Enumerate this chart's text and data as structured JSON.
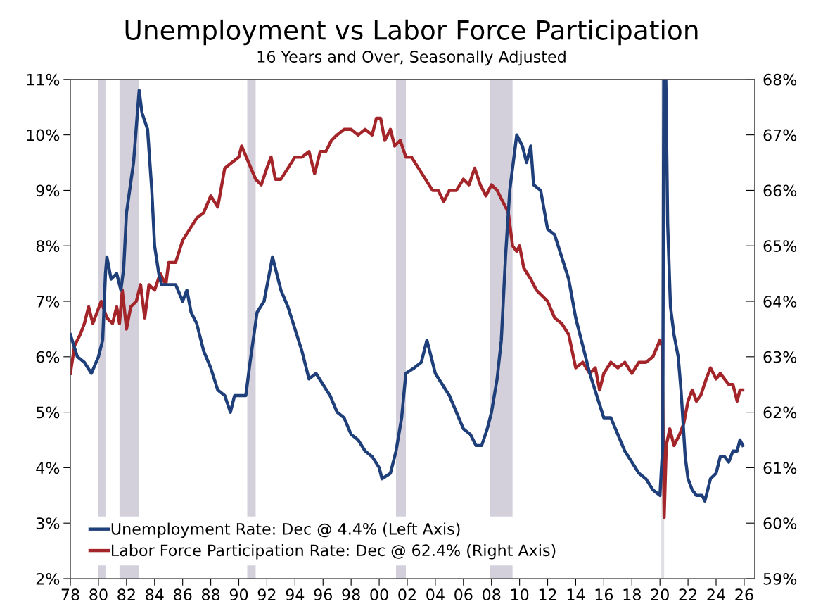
{
  "chart_data": {
    "type": "line",
    "title": "Unemployment vs Labor Force Participation",
    "subtitle": "16 Years and Over, Seasonally Adjusted",
    "xlim": [
      1978,
      2026.75
    ],
    "xticks": [
      {
        "value": 1978,
        "label": "78"
      },
      {
        "value": 1980,
        "label": "80"
      },
      {
        "value": 1982,
        "label": "82"
      },
      {
        "value": 1984,
        "label": "84"
      },
      {
        "value": 1986,
        "label": "86"
      },
      {
        "value": 1988,
        "label": "88"
      },
      {
        "value": 1990,
        "label": "90"
      },
      {
        "value": 1992,
        "label": "92"
      },
      {
        "value": 1994,
        "label": "94"
      },
      {
        "value": 1996,
        "label": "96"
      },
      {
        "value": 1998,
        "label": "98"
      },
      {
        "value": 2000,
        "label": "00"
      },
      {
        "value": 2002,
        "label": "02"
      },
      {
        "value": 2004,
        "label": "04"
      },
      {
        "value": 2006,
        "label": "06"
      },
      {
        "value": 2008,
        "label": "08"
      },
      {
        "value": 2010,
        "label": "10"
      },
      {
        "value": 2012,
        "label": "12"
      },
      {
        "value": 2014,
        "label": "14"
      },
      {
        "value": 2016,
        "label": "16"
      },
      {
        "value": 2018,
        "label": "18"
      },
      {
        "value": 2020,
        "label": "20"
      },
      {
        "value": 2022,
        "label": "22"
      },
      {
        "value": 2024,
        "label": "24"
      },
      {
        "value": 2026,
        "label": "26"
      }
    ],
    "ylim": [
      2,
      11
    ],
    "yticks": [
      {
        "value": 2,
        "label": "2%"
      },
      {
        "value": 3,
        "label": "3%"
      },
      {
        "value": 4,
        "label": "4%"
      },
      {
        "value": 5,
        "label": "5%"
      },
      {
        "value": 6,
        "label": "6%"
      },
      {
        "value": 7,
        "label": "7%"
      },
      {
        "value": 8,
        "label": "8%"
      },
      {
        "value": 9,
        "label": "9%"
      },
      {
        "value": 10,
        "label": "10%"
      },
      {
        "value": 11,
        "label": "11%"
      }
    ],
    "y2lim": [
      59,
      68
    ],
    "y2ticks": [
      {
        "value": 59,
        "label": "59%"
      },
      {
        "value": 60,
        "label": "60%"
      },
      {
        "value": 61,
        "label": "61%"
      },
      {
        "value": 62,
        "label": "62%"
      },
      {
        "value": 63,
        "label": "63%"
      },
      {
        "value": 64,
        "label": "64%"
      },
      {
        "value": 65,
        "label": "65%"
      },
      {
        "value": 66,
        "label": "66%"
      },
      {
        "value": 67,
        "label": "67%"
      },
      {
        "value": 68,
        "label": "68%"
      }
    ],
    "grid": false,
    "legend": "bottom left",
    "marker": "none",
    "line_style": "solid",
    "bands": [
      {
        "axis": "x",
        "from": 1980.0,
        "to": 1980.5,
        "color": "#d3d0dc"
      },
      {
        "axis": "x",
        "from": 1981.5,
        "to": 1982.9,
        "color": "#d3d0dc"
      },
      {
        "axis": "x",
        "from": 1990.6,
        "to": 1991.2,
        "color": "#d3d0dc"
      },
      {
        "axis": "x",
        "from": 2001.2,
        "to": 2001.9,
        "color": "#d3d0dc"
      },
      {
        "axis": "x",
        "from": 2007.9,
        "to": 2009.5,
        "color": "#d3d0dc"
      },
      {
        "axis": "x",
        "from": 2020.1,
        "to": 2020.3,
        "color": "#e0e0e4"
      }
    ],
    "series": [
      {
        "name": "Unemployment Rate: Dec @ 4.4% (Left Axis)",
        "color": "#1f3f7a",
        "axis": "y",
        "x": [
          1978.0,
          1978.5,
          1979.0,
          1979.5,
          1980.0,
          1980.3,
          1980.5,
          1980.6,
          1980.9,
          1981.3,
          1981.6,
          1981.8,
          1982.0,
          1982.5,
          1982.9,
          1983.1,
          1983.5,
          1983.8,
          1984.0,
          1984.3,
          1984.5,
          1985.0,
          1985.5,
          1986.0,
          1986.3,
          1986.6,
          1987.0,
          1987.5,
          1988.0,
          1988.5,
          1989.0,
          1989.4,
          1989.7,
          1990.0,
          1990.5,
          1990.8,
          1991.3,
          1991.8,
          1992.4,
          1993.0,
          1993.5,
          1994.0,
          1994.5,
          1995.0,
          1995.5,
          1996.0,
          1996.5,
          1997.0,
          1997.5,
          1998.0,
          1998.5,
          1999.0,
          1999.5,
          2000.0,
          2000.2,
          2000.8,
          2001.2,
          2001.6,
          2001.9,
          2002.5,
          2003.0,
          2003.4,
          2004.0,
          2004.5,
          2005.0,
          2005.5,
          2006.0,
          2006.5,
          2006.9,
          2007.3,
          2007.7,
          2008.0,
          2008.4,
          2008.7,
          2009.0,
          2009.3,
          2009.8,
          2010.2,
          2010.5,
          2010.8,
          2011.0,
          2011.5,
          2012.0,
          2012.5,
          2013.0,
          2013.5,
          2014.0,
          2014.5,
          2015.0,
          2015.5,
          2016.0,
          2016.5,
          2017.0,
          2017.5,
          2018.0,
          2018.5,
          2019.0,
          2019.5,
          2020.0,
          2020.2,
          2020.27,
          2020.42,
          2020.55,
          2020.75,
          2021.0,
          2021.3,
          2021.5,
          2021.8,
          2022.0,
          2022.3,
          2022.6,
          2023.0,
          2023.2,
          2023.4,
          2023.6,
          2024.0,
          2024.3,
          2024.6,
          2024.9,
          2025.2,
          2025.5,
          2025.7,
          2025.9
        ],
        "values": [
          6.4,
          6.0,
          5.9,
          5.7,
          6.0,
          6.3,
          7.5,
          7.8,
          7.4,
          7.5,
          7.2,
          7.6,
          8.6,
          9.5,
          10.8,
          10.4,
          10.1,
          9.0,
          8.0,
          7.5,
          7.3,
          7.3,
          7.3,
          7.0,
          7.2,
          6.8,
          6.6,
          6.1,
          5.8,
          5.4,
          5.3,
          5.0,
          5.3,
          5.3,
          5.3,
          5.9,
          6.8,
          7.0,
          7.8,
          7.2,
          6.9,
          6.5,
          6.1,
          5.6,
          5.7,
          5.5,
          5.3,
          5.0,
          4.9,
          4.6,
          4.5,
          4.3,
          4.2,
          4.0,
          3.8,
          3.9,
          4.3,
          4.9,
          5.7,
          5.8,
          5.9,
          6.3,
          5.7,
          5.5,
          5.3,
          5.0,
          4.7,
          4.6,
          4.4,
          4.4,
          4.7,
          5.0,
          5.6,
          6.3,
          7.8,
          9.0,
          10.0,
          9.8,
          9.5,
          9.8,
          9.1,
          9.0,
          8.3,
          8.2,
          7.8,
          7.4,
          6.7,
          6.2,
          5.7,
          5.3,
          4.9,
          4.9,
          4.6,
          4.3,
          4.1,
          3.9,
          3.8,
          3.6,
          3.5,
          4.4,
          11.0,
          11.0,
          8.4,
          6.9,
          6.4,
          6.0,
          5.4,
          4.2,
          3.8,
          3.6,
          3.5,
          3.5,
          3.4,
          3.6,
          3.8,
          3.9,
          4.2,
          4.2,
          4.1,
          4.3,
          4.3,
          4.5,
          4.4
        ]
      },
      {
        "name": "Labor Force Participation Rate: Dec @ 62.4% (Right Axis)",
        "color": "#a3252a",
        "axis": "y2",
        "x": [
          1978.0,
          1978.3,
          1978.7,
          1979.0,
          1979.3,
          1979.6,
          1979.9,
          1980.2,
          1980.6,
          1981.0,
          1981.3,
          1981.5,
          1981.7,
          1982.0,
          1982.3,
          1982.7,
          1983.0,
          1983.3,
          1983.6,
          1984.0,
          1984.4,
          1984.8,
          1985.0,
          1985.5,
          1986.0,
          1986.5,
          1987.0,
          1987.5,
          1988.0,
          1988.5,
          1989.0,
          1989.5,
          1990.0,
          1990.2,
          1990.7,
          1991.2,
          1991.6,
          1992.0,
          1992.3,
          1992.6,
          1993.0,
          1993.5,
          1994.0,
          1994.5,
          1995.0,
          1995.4,
          1995.8,
          1996.2,
          1996.6,
          1997.0,
          1997.5,
          1998.0,
          1998.5,
          1999.0,
          1999.5,
          1999.8,
          2000.1,
          2000.4,
          2000.8,
          2001.1,
          2001.5,
          2001.9,
          2002.3,
          2002.8,
          2003.3,
          2003.8,
          2004.2,
          2004.6,
          2005.0,
          2005.5,
          2006.0,
          2006.4,
          2006.8,
          2007.2,
          2007.6,
          2008.0,
          2008.4,
          2008.8,
          2009.2,
          2009.5,
          2009.8,
          2010.0,
          2010.3,
          2010.8,
          2011.2,
          2011.6,
          2012.0,
          2012.5,
          2013.0,
          2013.5,
          2014.0,
          2014.5,
          2015.0,
          2015.4,
          2015.7,
          2016.0,
          2016.5,
          2017.0,
          2017.5,
          2018.0,
          2018.5,
          2019.0,
          2019.5,
          2020.0,
          2020.15,
          2020.3,
          2020.45,
          2020.7,
          2021.0,
          2021.4,
          2021.7,
          2022.0,
          2022.3,
          2022.6,
          2022.9,
          2023.3,
          2023.6,
          2024.0,
          2024.3,
          2024.6,
          2024.9,
          2025.2,
          2025.5,
          2025.7,
          2025.9
        ],
        "values": [
          62.7,
          63.2,
          63.4,
          63.6,
          63.9,
          63.6,
          63.8,
          64.0,
          63.7,
          63.6,
          63.9,
          63.6,
          64.2,
          63.5,
          63.9,
          64.0,
          64.3,
          63.7,
          64.3,
          64.2,
          64.5,
          64.3,
          64.7,
          64.7,
          65.1,
          65.3,
          65.5,
          65.6,
          65.9,
          65.7,
          66.4,
          66.5,
          66.6,
          66.8,
          66.5,
          66.2,
          66.1,
          66.4,
          66.6,
          66.2,
          66.2,
          66.4,
          66.6,
          66.6,
          66.7,
          66.3,
          66.7,
          66.7,
          66.9,
          67.0,
          67.1,
          67.1,
          67.0,
          67.1,
          67.0,
          67.3,
          67.3,
          66.9,
          67.1,
          66.8,
          66.9,
          66.6,
          66.6,
          66.4,
          66.2,
          66.0,
          66.0,
          65.8,
          66.0,
          66.0,
          66.2,
          66.1,
          66.4,
          66.1,
          65.9,
          66.1,
          66.0,
          65.8,
          65.6,
          65.0,
          64.9,
          65.0,
          64.6,
          64.4,
          64.2,
          64.1,
          64.0,
          63.7,
          63.6,
          63.4,
          62.8,
          62.9,
          62.7,
          62.8,
          62.4,
          62.7,
          62.9,
          62.8,
          62.9,
          62.7,
          62.9,
          62.9,
          63.0,
          63.3,
          63.2,
          60.1,
          61.4,
          61.7,
          61.4,
          61.6,
          61.8,
          62.2,
          62.4,
          62.2,
          62.3,
          62.6,
          62.8,
          62.6,
          62.7,
          62.6,
          62.5,
          62.5,
          62.2,
          62.4,
          62.4
        ]
      }
    ]
  }
}
